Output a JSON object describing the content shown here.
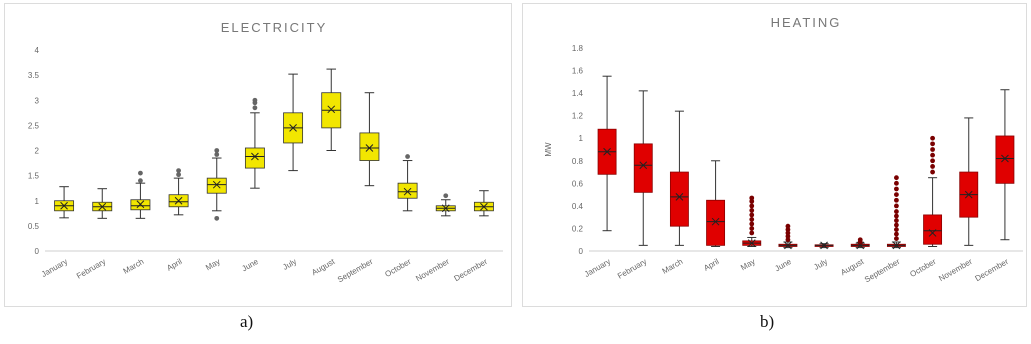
{
  "captions": {
    "a": "a)",
    "b": "b)"
  },
  "chart_data": [
    {
      "type": "box",
      "title": "ELECTRICITY",
      "xlabel": "",
      "ylabel": "",
      "ylim": [
        0,
        4
      ],
      "yticks": [
        "0",
        "0.5",
        "1",
        "1.5",
        "2",
        "2.5",
        "3",
        "3.5",
        "4"
      ],
      "grid": false,
      "color": "#f2e600",
      "edge_color": "#333333",
      "categories": [
        "January",
        "February",
        "March",
        "April",
        "May",
        "June",
        "July",
        "August",
        "September",
        "October",
        "November",
        "December"
      ],
      "boxes": [
        {
          "min": 0.66,
          "q1": 0.8,
          "median": 0.9,
          "q3": 1.0,
          "max": 1.28,
          "mean": 0.9,
          "outliers": []
        },
        {
          "min": 0.65,
          "q1": 0.8,
          "median": 0.88,
          "q3": 0.97,
          "max": 1.24,
          "mean": 0.88,
          "outliers": []
        },
        {
          "min": 0.65,
          "q1": 0.82,
          "median": 0.9,
          "q3": 1.02,
          "max": 1.35,
          "mean": 0.93,
          "outliers": [
            1.4,
            1.55
          ]
        },
        {
          "min": 0.72,
          "q1": 0.88,
          "median": 0.98,
          "q3": 1.12,
          "max": 1.45,
          "mean": 1.0,
          "outliers": [
            1.52,
            1.6
          ]
        },
        {
          "min": 0.8,
          "q1": 1.15,
          "median": 1.32,
          "q3": 1.45,
          "max": 1.85,
          "mean": 1.32,
          "outliers": [
            0.65,
            1.92,
            2.0
          ]
        },
        {
          "min": 1.25,
          "q1": 1.65,
          "median": 1.88,
          "q3": 2.05,
          "max": 2.75,
          "mean": 1.88,
          "outliers": [
            2.85,
            2.95,
            3.0
          ]
        },
        {
          "min": 1.6,
          "q1": 2.15,
          "median": 2.45,
          "q3": 2.75,
          "max": 3.52,
          "mean": 2.45,
          "outliers": []
        },
        {
          "min": 2.0,
          "q1": 2.45,
          "median": 2.8,
          "q3": 3.15,
          "max": 3.62,
          "mean": 2.82,
          "outliers": []
        },
        {
          "min": 1.3,
          "q1": 1.8,
          "median": 2.05,
          "q3": 2.35,
          "max": 3.15,
          "mean": 2.05,
          "outliers": []
        },
        {
          "min": 0.8,
          "q1": 1.05,
          "median": 1.18,
          "q3": 1.35,
          "max": 1.8,
          "mean": 1.18,
          "outliers": [
            1.88
          ]
        },
        {
          "min": 0.7,
          "q1": 0.8,
          "median": 0.85,
          "q3": 0.9,
          "max": 1.02,
          "mean": 0.85,
          "outliers": [
            1.1
          ]
        },
        {
          "min": 0.7,
          "q1": 0.8,
          "median": 0.88,
          "q3": 0.97,
          "max": 1.2,
          "mean": 0.88,
          "outliers": []
        }
      ]
    },
    {
      "type": "box",
      "title": "HEATING",
      "xlabel": "",
      "ylabel": "MW",
      "ylim": [
        0,
        1.8
      ],
      "yticks": [
        "0",
        "0.2",
        "0.4",
        "0.6",
        "0.8",
        "1",
        "1.2",
        "1.4",
        "1.6",
        "1.8"
      ],
      "grid": false,
      "color": "#e00000",
      "edge_color": "#8b0000",
      "categories": [
        "January",
        "February",
        "March",
        "April",
        "May",
        "June",
        "July",
        "August",
        "September",
        "October",
        "November",
        "December"
      ],
      "boxes": [
        {
          "min": 0.18,
          "q1": 0.68,
          "median": 0.88,
          "q3": 1.08,
          "max": 1.55,
          "mean": 0.88,
          "outliers": []
        },
        {
          "min": 0.05,
          "q1": 0.52,
          "median": 0.76,
          "q3": 0.95,
          "max": 1.42,
          "mean": 0.76,
          "outliers": []
        },
        {
          "min": 0.05,
          "q1": 0.22,
          "median": 0.48,
          "q3": 0.7,
          "max": 1.24,
          "mean": 0.48,
          "outliers": []
        },
        {
          "min": 0.04,
          "q1": 0.05,
          "median": 0.26,
          "q3": 0.45,
          "max": 0.8,
          "mean": 0.26,
          "outliers": []
        },
        {
          "min": 0.04,
          "q1": 0.05,
          "median": 0.07,
          "q3": 0.09,
          "max": 0.12,
          "mean": 0.07,
          "outliers": [
            0.16,
            0.2,
            0.24,
            0.28,
            0.32,
            0.36,
            0.4,
            0.44,
            0.47
          ]
        },
        {
          "min": 0.03,
          "q1": 0.04,
          "median": 0.05,
          "q3": 0.06,
          "max": 0.08,
          "mean": 0.05,
          "outliers": [
            0.1,
            0.13,
            0.16,
            0.19,
            0.22
          ]
        },
        {
          "min": 0.03,
          "q1": 0.04,
          "median": 0.05,
          "q3": 0.055,
          "max": 0.065,
          "mean": 0.05,
          "outliers": []
        },
        {
          "min": 0.03,
          "q1": 0.04,
          "median": 0.05,
          "q3": 0.06,
          "max": 0.07,
          "mean": 0.05,
          "outliers": [
            0.08,
            0.1
          ]
        },
        {
          "min": 0.03,
          "q1": 0.04,
          "median": 0.05,
          "q3": 0.06,
          "max": 0.08,
          "mean": 0.05,
          "outliers": [
            0.11,
            0.15,
            0.19,
            0.23,
            0.27,
            0.31,
            0.35,
            0.4,
            0.45,
            0.5,
            0.55,
            0.6,
            0.65
          ]
        },
        {
          "min": 0.04,
          "q1": 0.06,
          "median": 0.18,
          "q3": 0.32,
          "max": 0.65,
          "mean": 0.16,
          "outliers": [
            0.7,
            0.75,
            0.8,
            0.85,
            0.9,
            0.95,
            1.0
          ]
        },
        {
          "min": 0.05,
          "q1": 0.3,
          "median": 0.5,
          "q3": 0.7,
          "max": 1.18,
          "mean": 0.5,
          "outliers": []
        },
        {
          "min": 0.1,
          "q1": 0.6,
          "median": 0.82,
          "q3": 1.02,
          "max": 1.43,
          "mean": 0.82,
          "outliers": []
        }
      ]
    }
  ]
}
